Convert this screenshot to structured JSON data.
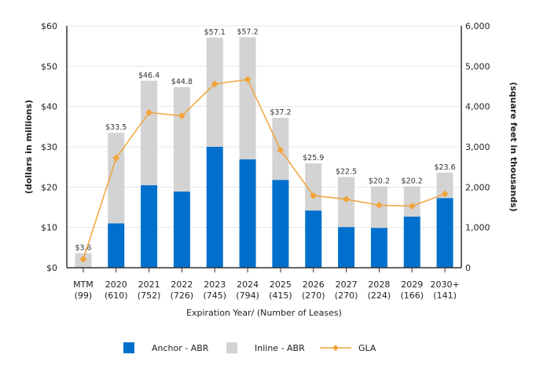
{
  "chart_data": {
    "type": "bar",
    "stacked": true,
    "categories": [
      "MTM",
      "2020",
      "2021",
      "2022",
      "2023",
      "2024",
      "2025",
      "2026",
      "2027",
      "2028",
      "2029",
      "2030+"
    ],
    "category_counts": [
      "(99)",
      "(610)",
      "(752)",
      "(726)",
      "(745)",
      "(794)",
      "(415)",
      "(270)",
      "(270)",
      "(224)",
      "(166)",
      "(141)"
    ],
    "series": [
      {
        "name": "Anchor - ABR",
        "type": "bar",
        "axis": "left",
        "color": "#0070cc",
        "values": [
          0,
          11.0,
          20.5,
          18.9,
          30.0,
          26.9,
          21.8,
          14.2,
          10.1,
          9.9,
          12.7,
          17.3
        ]
      },
      {
        "name": "Inline - ABR",
        "type": "bar",
        "axis": "left",
        "color": "#d3d3d3",
        "values": [
          3.6,
          22.5,
          25.9,
          25.9,
          27.1,
          30.3,
          15.4,
          11.7,
          12.4,
          10.3,
          7.5,
          6.3
        ]
      },
      {
        "name": "GLA",
        "type": "line",
        "axis": "right",
        "color": "#f2a33a",
        "values": [
          210,
          2720,
          3850,
          3770,
          4560,
          4670,
          2920,
          1790,
          1700,
          1550,
          1530,
          1830
        ]
      }
    ],
    "data_labels": [
      "$3.6",
      "$33.5",
      "$46.4",
      "$44.8",
      "$57.1",
      "$57.2",
      "$37.2",
      "$25.9",
      "$22.5",
      "$20.2",
      "$20.2",
      "$23.6"
    ],
    "xlabel": "Expiration Year/ (Number of Leases)",
    "ylabel": "(dollars in millions)",
    "y2label": "(square feet in thousands)",
    "ylim": [
      0,
      60
    ],
    "y2lim": [
      0,
      6000
    ],
    "yticks": [
      "$0",
      "$10",
      "$20",
      "$30",
      "$40",
      "$50",
      "$60"
    ],
    "y2ticks": [
      "0",
      "1,000",
      "2,000",
      "3,000",
      "4,000",
      "5,000",
      "6,000"
    ],
    "grid": true,
    "legend_placement": "bottom"
  }
}
